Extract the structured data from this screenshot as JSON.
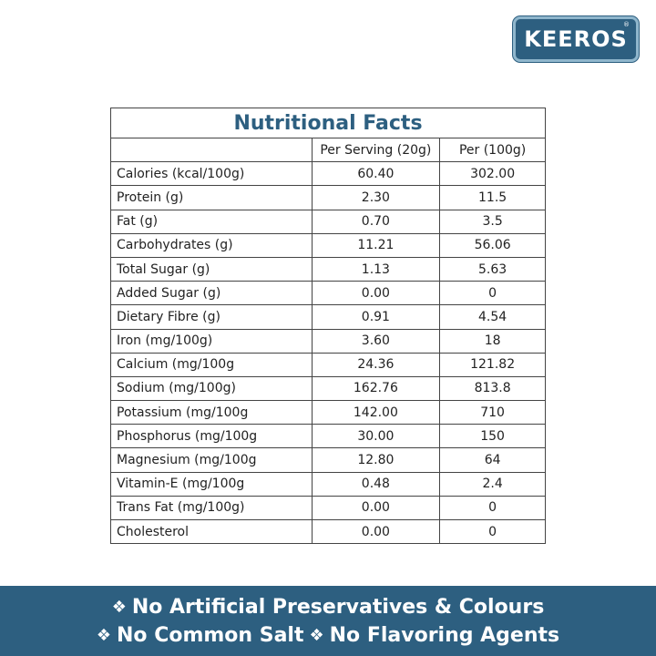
{
  "logo": {
    "text": "KEEROS",
    "registered": "®"
  },
  "table": {
    "title": "Nutritional Facts",
    "headers": [
      "",
      "Per Serving (20g)",
      "Per (100g)"
    ],
    "rows": [
      [
        "Calories (kcal/100g)",
        "60.40",
        "302.00"
      ],
      [
        "Protein (g)",
        "2.30",
        "11.5"
      ],
      [
        "Fat (g)",
        "0.70",
        "3.5"
      ],
      [
        "Carbohydrates (g)",
        "11.21",
        "56.06"
      ],
      [
        "Total Sugar (g)",
        "1.13",
        "5.63"
      ],
      [
        "Added Sugar (g)",
        "0.00",
        "0"
      ],
      [
        "Dietary Fibre (g)",
        "0.91",
        "4.54"
      ],
      [
        "Iron (mg/100g)",
        "3.60",
        "18"
      ],
      [
        "Calcium (mg/100g",
        "24.36",
        "121.82"
      ],
      [
        "Sodium (mg/100g)",
        "162.76",
        "813.8"
      ],
      [
        "Potassium (mg/100g",
        "142.00",
        "710"
      ],
      [
        "Phosphorus (mg/100g",
        "30.00",
        "150"
      ],
      [
        "Magnesium (mg/100g",
        "12.80",
        "64"
      ],
      [
        "Vitamin-E (mg/100g",
        "0.48",
        "2.4"
      ],
      [
        "Trans Fat (mg/100g)",
        "0.00",
        "0"
      ],
      [
        "Cholesterol",
        "0.00",
        "0"
      ]
    ]
  },
  "banner": {
    "bullet": "❖",
    "line1": "No Artificial Preservatives & Colours",
    "line2a": "No Common Salt",
    "line2b": "No Flavoring Agents"
  },
  "colors": {
    "brand": "#2d5f80",
    "logo_border": "#8fb6cc"
  }
}
